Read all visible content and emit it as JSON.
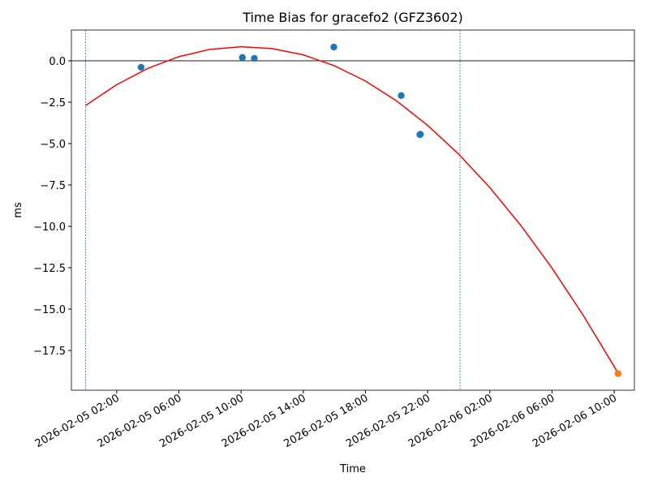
{
  "chart_data": {
    "type": "scatter",
    "title": "Time Bias for gracefo2 (GFZ3602)",
    "xlabel": "Time",
    "ylabel": "ms",
    "xlim": [
      "2026-02-04 23:05",
      "2026-02-06 11:18"
    ],
    "xticks": [
      "2026-02-05 02:00",
      "2026-02-05 06:00",
      "2026-02-05 10:00",
      "2026-02-05 14:00",
      "2026-02-05 18:00",
      "2026-02-05 22:00",
      "2026-02-06 02:00",
      "2026-02-06 06:00",
      "2026-02-06 10:00"
    ],
    "ylim": [
      -19.9,
      1.86
    ],
    "yticks": [
      {
        "value": 0,
        "label": "0.0"
      },
      {
        "value": -2.5,
        "label": "−2.5"
      },
      {
        "value": -5,
        "label": "−5.0"
      },
      {
        "value": -7.5,
        "label": "−7.5"
      },
      {
        "value": -10,
        "label": "−10.0"
      },
      {
        "value": -12.5,
        "label": "−12.5"
      },
      {
        "value": -15,
        "label": "−15.0"
      },
      {
        "value": -17.5,
        "label": "−17.5"
      }
    ],
    "hline": {
      "y": 0,
      "color": "#000000"
    },
    "vlines": {
      "x": [
        "2026-02-05 00:00",
        "2026-02-06 00:05"
      ],
      "color": "#1f77b4"
    },
    "series": [
      {
        "type": "line",
        "color": "#ff0000",
        "x": [
          "2026-02-05 00:00",
          "2026-02-05 02:00",
          "2026-02-05 04:00",
          "2026-02-05 06:00",
          "2026-02-05 08:00",
          "2026-02-05 10:00",
          "2026-02-05 12:00",
          "2026-02-05 14:00",
          "2026-02-05 16:00",
          "2026-02-05 18:00",
          "2026-02-05 20:00",
          "2026-02-05 22:00",
          "2026-02-06 00:00",
          "2026-02-06 02:00",
          "2026-02-06 04:00",
          "2026-02-06 06:00",
          "2026-02-06 08:00",
          "2026-02-06 10:00",
          "2026-02-06 10:15"
        ],
        "values": [
          -2.7,
          -1.44,
          -0.46,
          0.25,
          0.69,
          0.85,
          0.74,
          0.36,
          -0.3,
          -1.22,
          -2.42,
          -3.9,
          -5.64,
          -7.66,
          -9.95,
          -12.52,
          -15.36,
          -18.47,
          -18.87
        ]
      },
      {
        "type": "scatter",
        "color": "#1f77b4",
        "x": [
          "2026-02-05 03:34",
          "2026-02-05 10:05",
          "2026-02-05 10:51",
          "2026-02-05 15:58",
          "2026-02-05 20:18",
          "2026-02-05 21:30",
          "2026-02-05 21:32"
        ],
        "values": [
          -0.39,
          0.2,
          0.15,
          0.83,
          -2.1,
          -4.46,
          -4.44
        ]
      },
      {
        "type": "scatter",
        "color": "#ff7f0e",
        "x": [
          "2026-02-06 10:15"
        ],
        "values": [
          -18.9
        ]
      }
    ]
  }
}
